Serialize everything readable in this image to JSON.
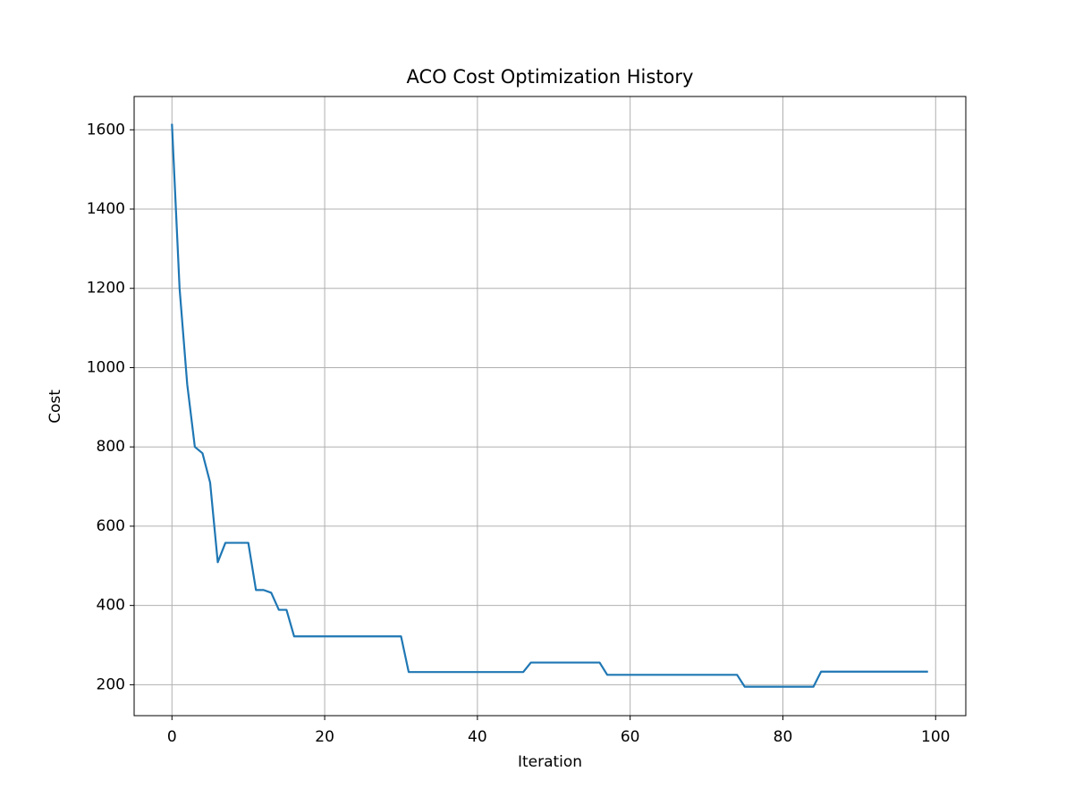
{
  "chart_data": {
    "type": "line",
    "title": "ACO Cost Optimization History",
    "x_label": "Iteration",
    "y_label": "Cost",
    "x": [
      0,
      1,
      2,
      3,
      4,
      5,
      6,
      7,
      8,
      9,
      10,
      11,
      12,
      13,
      14,
      15,
      16,
      17,
      18,
      19,
      20,
      21,
      22,
      23,
      24,
      25,
      26,
      27,
      28,
      29,
      30,
      31,
      32,
      33,
      34,
      35,
      36,
      37,
      38,
      39,
      40,
      41,
      42,
      43,
      44,
      45,
      46,
      47,
      48,
      49,
      50,
      51,
      52,
      53,
      54,
      55,
      56,
      57,
      58,
      59,
      60,
      61,
      62,
      63,
      64,
      65,
      66,
      67,
      68,
      69,
      70,
      71,
      72,
      73,
      74,
      75,
      76,
      77,
      78,
      79,
      80,
      81,
      82,
      83,
      84,
      85,
      86,
      87,
      88,
      89,
      90,
      91,
      92,
      93,
      94,
      95,
      96,
      97,
      98,
      99
    ],
    "series": [
      {
        "color": "#1f77b4",
        "values": [
          1615,
          1200,
          958,
          800,
          784,
          710,
          509,
          558,
          558,
          558,
          558,
          439,
          439,
          432,
          389,
          389,
          322,
          322,
          322,
          322,
          322,
          322,
          322,
          322,
          322,
          322,
          322,
          322,
          322,
          322,
          322,
          232,
          232,
          232,
          232,
          232,
          232,
          232,
          232,
          232,
          232,
          232,
          232,
          232,
          232,
          232,
          232,
          256,
          256,
          256,
          256,
          256,
          256,
          256,
          256,
          256,
          256,
          225,
          225,
          225,
          225,
          225,
          225,
          225,
          225,
          225,
          225,
          225,
          225,
          225,
          225,
          225,
          225,
          225,
          225,
          195,
          195,
          195,
          195,
          195,
          195,
          195,
          195,
          195,
          195,
          233,
          233,
          233,
          233,
          233,
          233,
          233,
          233,
          233,
          233,
          233,
          233,
          233,
          233,
          233
        ]
      }
    ],
    "xlim": [
      -4.95,
      103.95
    ],
    "ylim": [
      122,
      1684
    ],
    "xticks": [
      0,
      20,
      40,
      60,
      80,
      100
    ],
    "yticks": [
      200,
      400,
      600,
      800,
      1000,
      1200,
      1400,
      1600
    ],
    "grid": true
  }
}
